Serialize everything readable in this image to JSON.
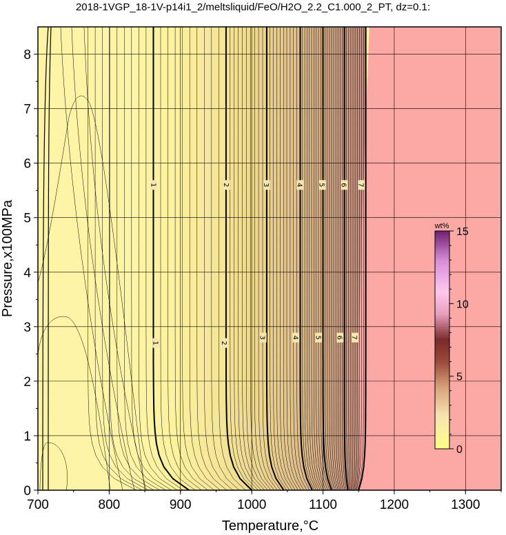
{
  "chart_data": {
    "type": "contour",
    "title": "2018-1VGP_18-1V-p14i1_2/meltsliquid/FeO/H2O_2.2_C1.000_2_PT, dz=0.1:",
    "xlabel": "Temperature,°C",
    "ylabel": "Pressure,x100MPa",
    "xlim": [
      700,
      1350
    ],
    "ylim": [
      0,
      8.5
    ],
    "x_ticks": [
      700,
      800,
      900,
      1000,
      1100,
      1200,
      1300
    ],
    "y_ticks": [
      0,
      1,
      2,
      3,
      4,
      5,
      6,
      7,
      8
    ],
    "grid": true,
    "contour_interval": 0.1,
    "colorbar": {
      "unit": "wt%",
      "range": [
        0,
        15
      ],
      "ticks": [
        0,
        5,
        10,
        15
      ],
      "placement": "right-inside",
      "colors": [
        "#ffff99",
        "#ffeecc",
        "#dd9966",
        "#883333",
        "#ffaadd",
        "#cc77cc",
        "#772277"
      ]
    },
    "background_color": "#fdf4a6",
    "saturated_region_color": "#fca8a4",
    "saturated_region_boundary_T": [
      [
        1148,
        0
      ],
      [
        1152,
        0.3
      ],
      [
        1150,
        2.5
      ],
      [
        1155,
        5
      ],
      [
        1165,
        8.5
      ]
    ],
    "major_contours": [
      {
        "label": "1",
        "value": 1,
        "T_high_P": 862,
        "T_low_P": 912,
        "label_positions": [
          [
            863,
            5.6
          ],
          [
            866,
            2.7
          ]
        ]
      },
      {
        "label": "2",
        "value": 2,
        "T_high_P": 964,
        "T_low_P": 1000,
        "label_positions": [
          [
            965,
            5.6
          ],
          [
            962,
            2.7
          ]
        ]
      },
      {
        "label": "3",
        "value": 3,
        "T_high_P": 1021,
        "T_low_P": 1045,
        "label_positions": [
          [
            1021,
            5.6
          ],
          [
            1016,
            2.8
          ]
        ]
      },
      {
        "label": "4",
        "value": 4,
        "T_high_P": 1068,
        "T_low_P": 1085,
        "label_positions": [
          [
            1068,
            5.6
          ],
          [
            1062,
            2.8
          ]
        ]
      },
      {
        "label": "5",
        "value": 5,
        "T_high_P": 1100,
        "T_low_P": 1112,
        "label_positions": [
          [
            1099,
            5.6
          ],
          [
            1094,
            2.8
          ]
        ]
      },
      {
        "label": "6",
        "value": 6,
        "T_high_P": 1130,
        "T_low_P": 1135,
        "label_positions": [
          [
            1130,
            5.6
          ],
          [
            1124,
            2.8
          ]
        ]
      },
      {
        "label": "7",
        "value": 7,
        "T_high_P": 1160,
        "T_low_P": 1150,
        "label_positions": [
          [
            1154,
            5.6
          ],
          [
            1145,
            2.8
          ]
        ]
      }
    ],
    "minor_contours_label": "1"
  }
}
